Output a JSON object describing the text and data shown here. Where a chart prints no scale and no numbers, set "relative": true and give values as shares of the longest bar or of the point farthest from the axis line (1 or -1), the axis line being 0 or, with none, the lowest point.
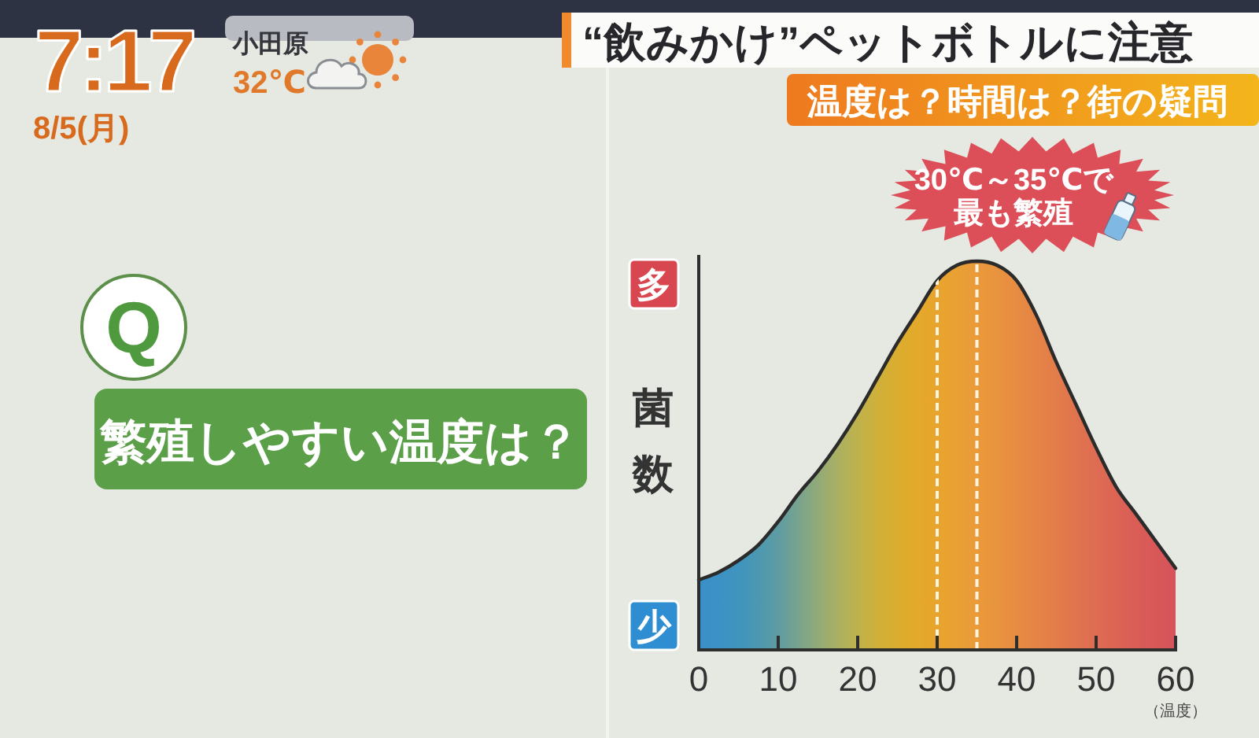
{
  "chart_data": [
    {
      "type": "area",
      "title": "“飲みかけ”ペットボトルに注意",
      "subtitle": "温度は？時間は？街の疑問",
      "xlabel": "（温度）",
      "ylabel": "菌数",
      "relative": true,
      "x": [
        0,
        2.5,
        5,
        7.5,
        10,
        12.5,
        15,
        17.5,
        20,
        22.5,
        25,
        27.5,
        30,
        32.5,
        35,
        37.5,
        40,
        42.5,
        45,
        47.5,
        50,
        52.5,
        55,
        57.5,
        60
      ],
      "series": [
        {
          "color": "#2b2b2b",
          "colors": [
            "#3a8fc8",
            "#3c92c4",
            "#3f95be",
            "#4c98b0",
            "#5e9ca2",
            "#78a38e",
            "#92aa78",
            "#abb062",
            "#bfb24c",
            "#cfb03a",
            "#dbad2e",
            "#e4a92a",
            "#e8a42e",
            "#e9a034",
            "#e99a3a",
            "#e8933e",
            "#e78c42",
            "#e58446",
            "#e37c4a",
            "#e0744e",
            "#de6c52",
            "#dc6454",
            "#da5d56",
            "#d85858",
            "#d6535a"
          ],
          "values": [
            0.18,
            0.2,
            0.23,
            0.27,
            0.33,
            0.4,
            0.46,
            0.53,
            0.61,
            0.7,
            0.79,
            0.87,
            0.95,
            0.99,
            1,
            0.99,
            0.95,
            0.86,
            0.74,
            0.63,
            0.52,
            0.42,
            0.35,
            0.28,
            0.21
          ]
        }
      ],
      "xlim": [
        0,
        60
      ],
      "xticks": [
        0,
        10,
        20,
        30,
        40,
        50,
        60
      ],
      "ref_lines": [
        {
          "axis": "x",
          "value": 30,
          "color": "#fdf3df",
          "line_style": "dashed"
        },
        {
          "axis": "x",
          "value": 35,
          "color": "#fdf3df",
          "line_style": "dashed"
        }
      ],
      "annotations": [
        "多",
        "少",
        "30℃～35℃で最も繁殖"
      ]
    },
    {
      "type": "other",
      "annotations": [
        "Q",
        "繁殖しやすい温度は？"
      ]
    },
    {
      "type": "other",
      "annotations": [
        "7:17",
        "8/5(月)",
        "小田原",
        "32℃"
      ]
    }
  ]
}
